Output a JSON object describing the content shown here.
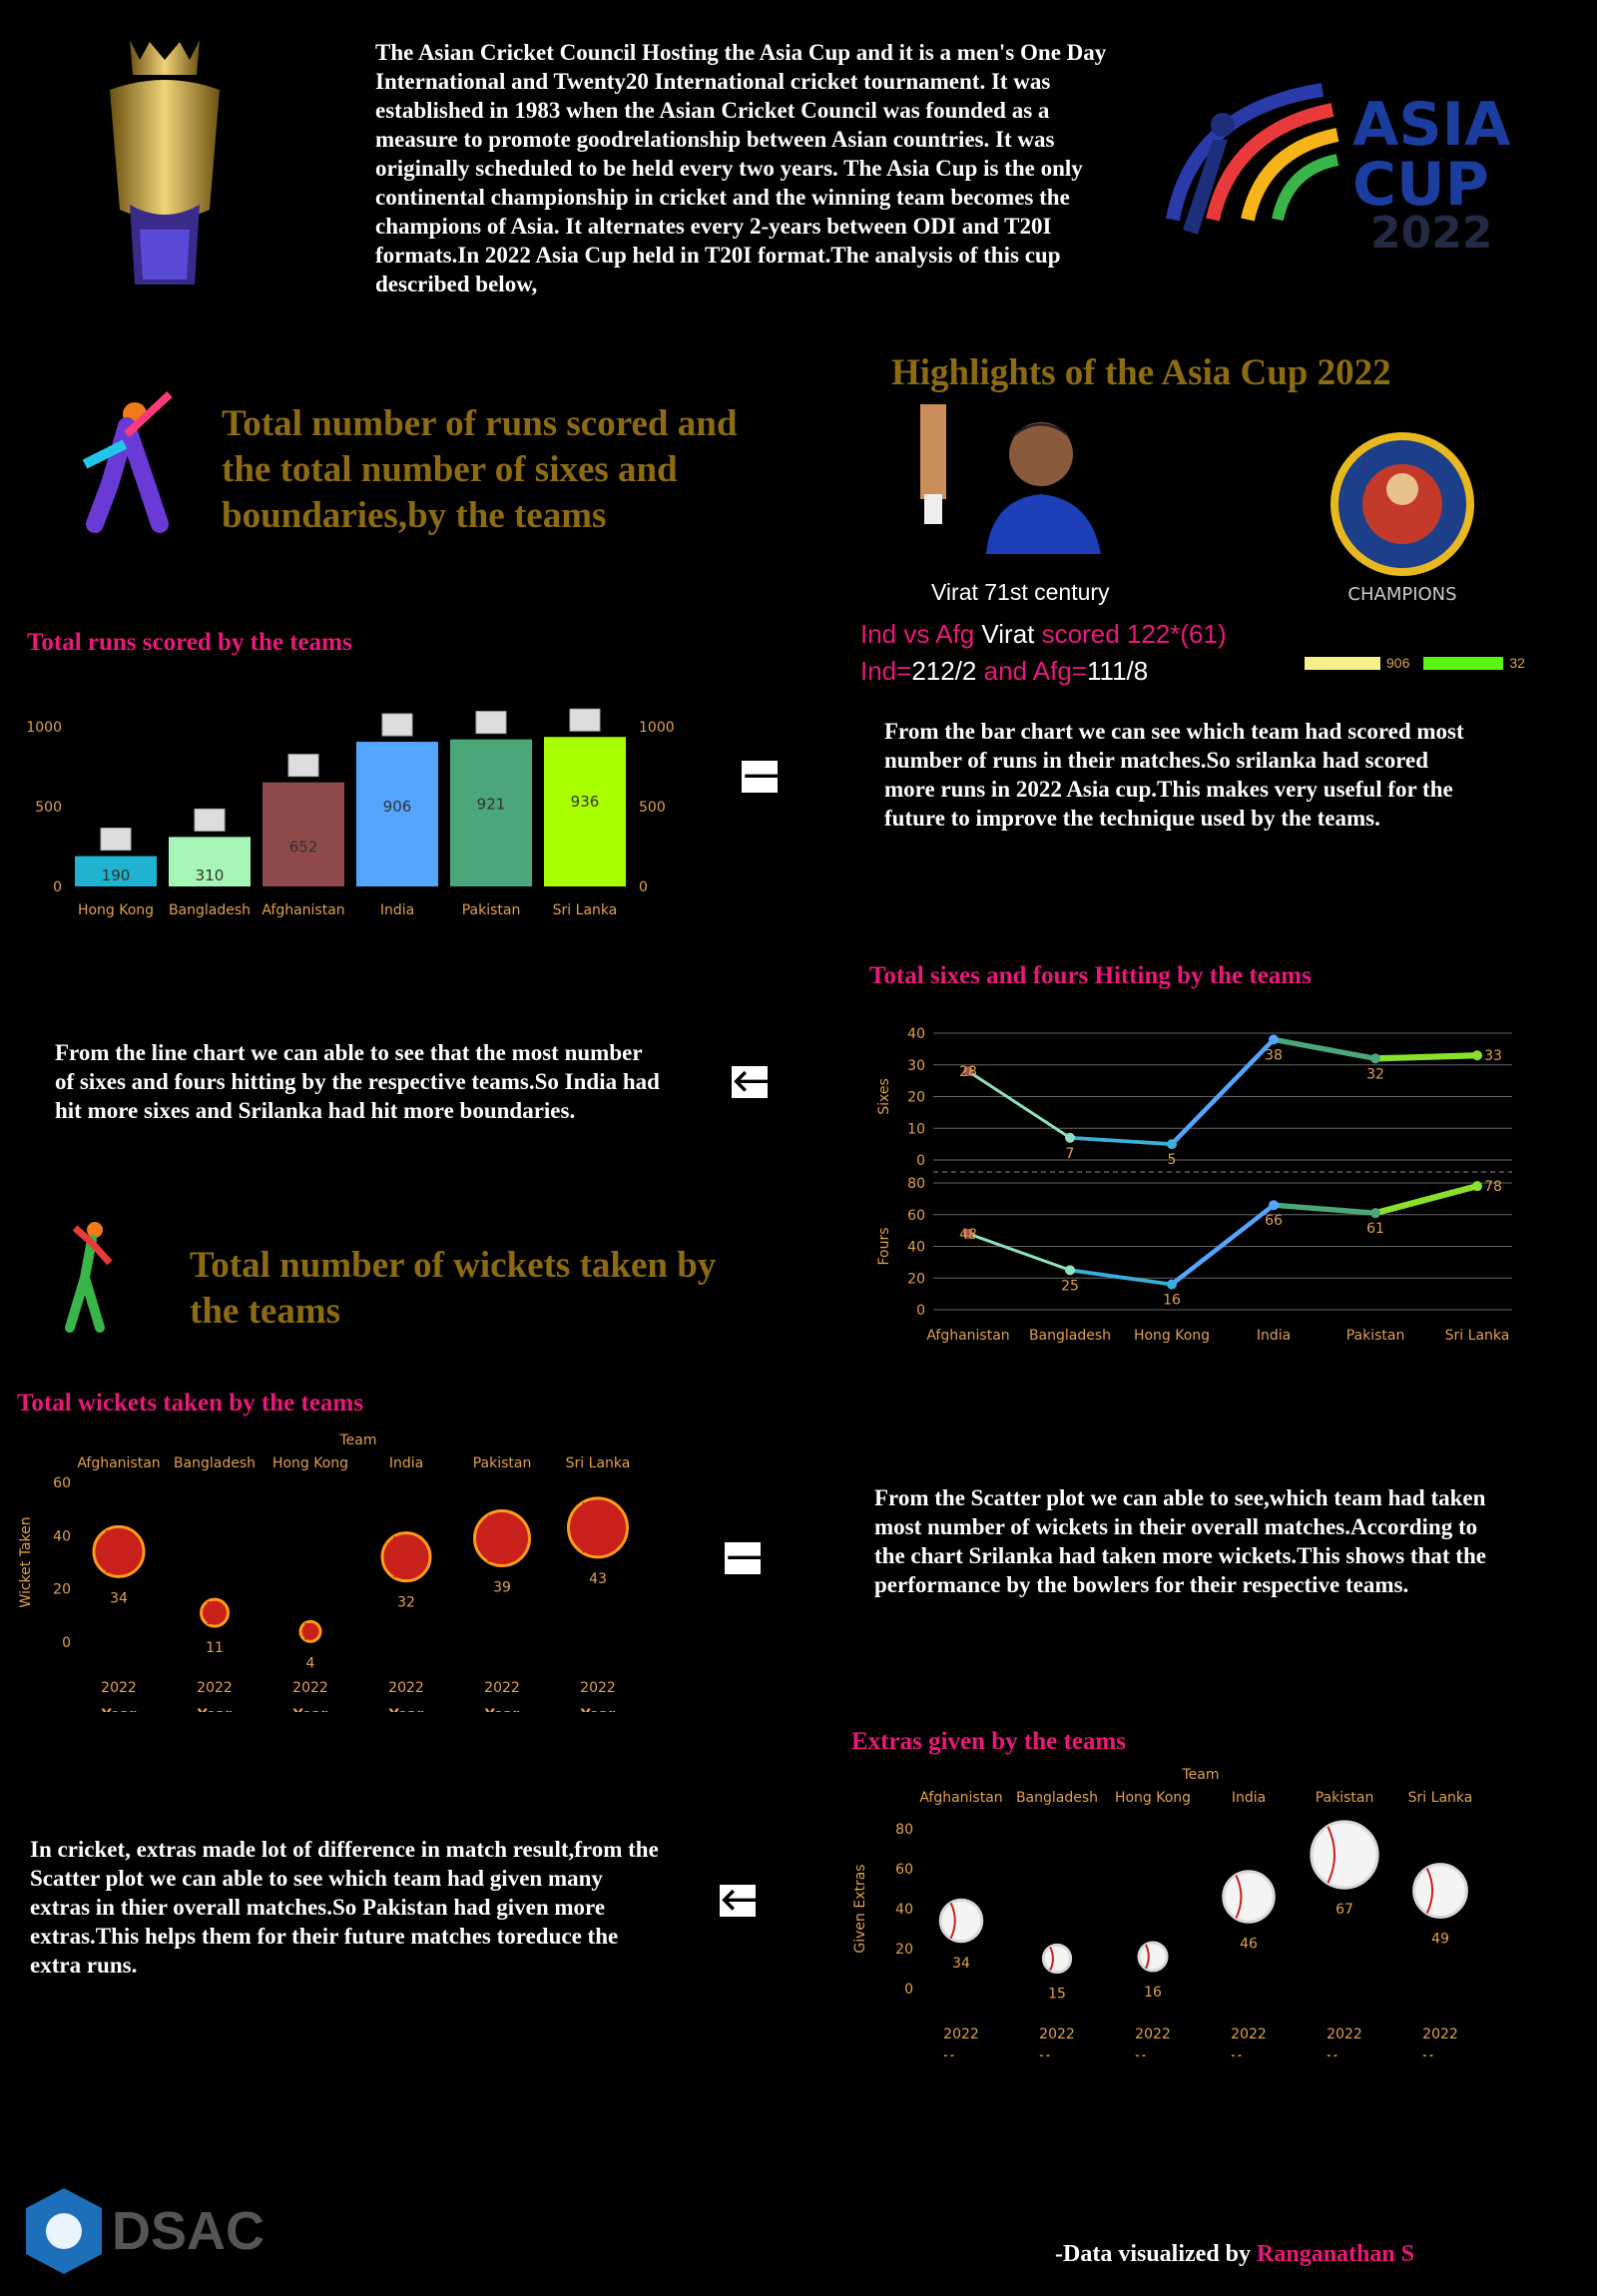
{
  "intro": "The Asian Cricket Council Hosting the Asia Cup and it is a men's One Day International and Twenty20 International cricket tournament. It was established in 1983 when the Asian Cricket Council was founded as a measure to promote goodrelationship between Asian countries. It was originally scheduled to be held every two years. The Asia Cup is the only continental championship in cricket and the winning team becomes the champions of Asia. It alternates every 2-years between ODI and T20I formats.In 2022 Asia Cup held in T20I format.The analysis of this cup described below,",
  "logo": {
    "line1": "ASIA",
    "line2": "CUP",
    "year": "2022"
  },
  "section_runs_title": "Total number of runs scored and the total number of sixes and boundaries,by the teams",
  "section_wickets_title": "Total number of wickets taken by the teams",
  "highlights": {
    "title": "Highlights of the Asia Cup 2022",
    "caption": "Virat 71st century",
    "line1_a": "Ind vs Afg",
    "line1_b": " Virat ",
    "line1_c": "scored 122*(61)",
    "line2_a": "Ind=",
    "line2_b": "212/2",
    "line2_c": " and Afg=",
    "line2_d": "111/8",
    "champions_label": "CHAMPIONS",
    "legend": [
      {
        "label": "906",
        "color": "#f5f08a"
      },
      {
        "label": "32",
        "color": "#5bf214"
      }
    ]
  },
  "desc_runs": "From the bar chart we can see which team had scored most number of runs in their matches.So srilanka had scored more runs in 2022 Asia cup.This makes very useful for the future to improve the technique used by the teams.",
  "desc_sixes": "From the line chart we can able to see that the most number of sixes and fours hitting by the respective teams.So India had hit more sixes and Srilanka had hit more boundaries.",
  "desc_wickets": "From the Scatter plot we can able to see,which team had taken most number of wickets in their overall matches.According to the chart Srilanka had taken more wickets.This shows that the performance by the bowlers for their respective teams.",
  "desc_extras": "In cricket, extras made lot of difference in match result,from the Scatter plot we can able to see which team had given many extras in thier overall matches.So Pakistan had given more extras.This helps them for their future matches toreduce the extra runs.",
  "arrows": {
    "right": "🡒",
    "left": "🡐"
  },
  "footer": {
    "brand": "DSAC",
    "credit": "-Data visualized by ",
    "author": "Ranganathan S"
  },
  "chart_data": [
    {
      "type": "bar",
      "title": "Total runs scored by the teams",
      "categories": [
        "Hong Kong",
        "Bangladesh",
        "Afghanistan",
        "India",
        "Pakistan",
        "Sri Lanka"
      ],
      "values": [
        190,
        310,
        652,
        906,
        921,
        936
      ],
      "colors": [
        "#1fb3cf",
        "#a8f5b8",
        "#8e4a4a",
        "#55a5ff",
        "#4ba67a",
        "#a8ff00"
      ],
      "yticks": [
        0,
        500,
        1000
      ],
      "ylim": [
        0,
        1000
      ]
    },
    {
      "type": "line",
      "title": "Total sixes and fours Hitting by the teams",
      "categories": [
        "Afghanistan",
        "Bangladesh",
        "Hong Kong",
        "India",
        "Pakistan",
        "Sri Lanka"
      ],
      "series": [
        {
          "name": "Sixes",
          "values": [
            28,
            7,
            5,
            38,
            32,
            33
          ],
          "ylim": [
            0,
            40
          ],
          "yticks": [
            0,
            10,
            20,
            30,
            40
          ]
        },
        {
          "name": "Fours",
          "values": [
            48,
            25,
            16,
            66,
            61,
            78
          ],
          "ylim": [
            0,
            80
          ],
          "yticks": [
            0,
            20,
            40,
            60,
            80
          ]
        }
      ],
      "grid": true
    },
    {
      "type": "scatter",
      "title": "Total wickets taken by the teams",
      "column_label": "Team",
      "categories": [
        "Afghanistan",
        "Bangladesh",
        "Hong Kong",
        "India",
        "Pakistan",
        "Sri Lanka"
      ],
      "x_values": [
        "2022",
        "2022",
        "2022",
        "2022",
        "2022",
        "2022"
      ],
      "x_label": "Year",
      "values": [
        34,
        11,
        4,
        32,
        39,
        43
      ],
      "ylabel": "Wicket Taken",
      "yticks": [
        0,
        20,
        40,
        60
      ],
      "ylim": [
        0,
        60
      ]
    },
    {
      "type": "scatter",
      "title": "Extras given by the teams",
      "column_label": "Team",
      "categories": [
        "Afghanistan",
        "Bangladesh",
        "Hong Kong",
        "India",
        "Pakistan",
        "Sri Lanka"
      ],
      "x_values": [
        "2022",
        "2022",
        "2022",
        "2022",
        "2022",
        "2022"
      ],
      "x_label": "Year",
      "values": [
        34,
        15,
        16,
        46,
        67,
        49
      ],
      "ylabel": "Given Extras",
      "yticks": [
        0,
        20,
        40,
        60,
        80
      ],
      "ylim": [
        0,
        80
      ]
    }
  ]
}
